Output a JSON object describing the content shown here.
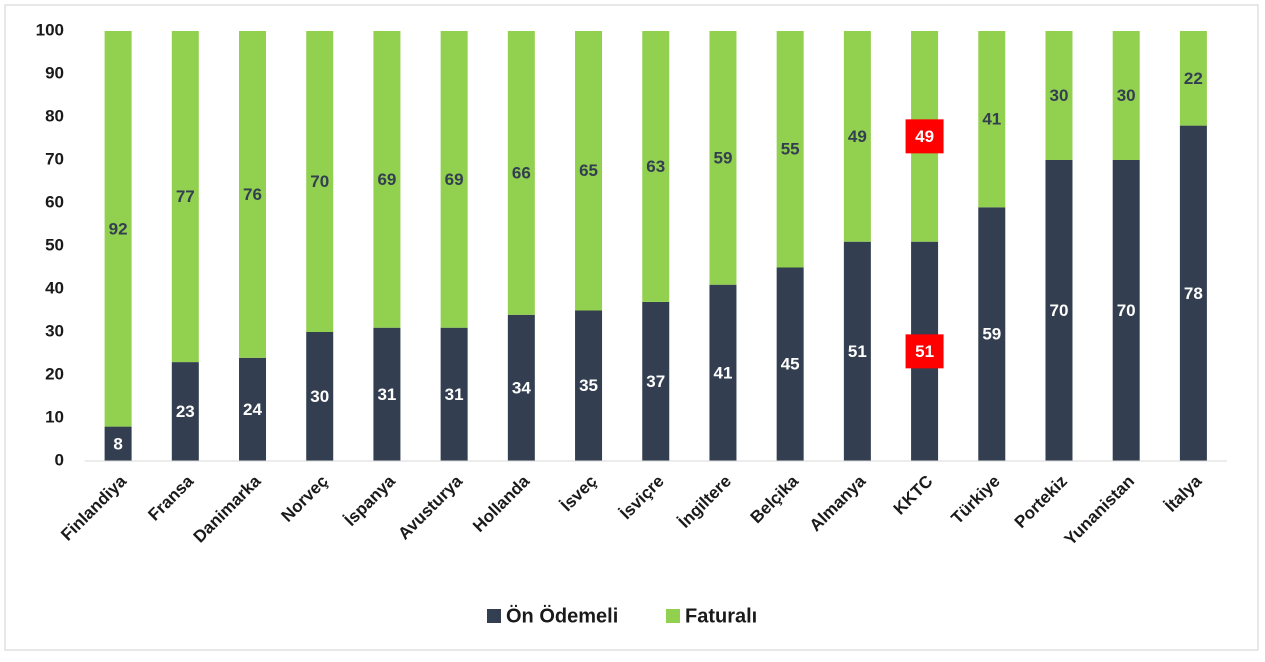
{
  "chart_data": {
    "type": "stacked_bar",
    "categories": [
      "Finlandiya",
      "Fransa",
      "Danimarka",
      "Norveç",
      "İspanya",
      "Avusturya",
      "Hollanda",
      "İsveç",
      "İsviçre",
      "İngiltere",
      "Belçika",
      "Almanya",
      "KKTC",
      "Türkiye",
      "Portekiz",
      "Yunanistan",
      "İtalya"
    ],
    "series": [
      {
        "name": "Ön Ödemeli",
        "color": "#333f50",
        "label_color": "#ffffff",
        "values": [
          8,
          23,
          24,
          30,
          31,
          31,
          34,
          35,
          37,
          41,
          45,
          51,
          51,
          59,
          70,
          70,
          78
        ]
      },
      {
        "name": "Faturalı",
        "color": "#92d050",
        "label_color": "#333f50",
        "values": [
          92,
          77,
          76,
          70,
          69,
          69,
          66,
          65,
          63,
          59,
          55,
          49,
          49,
          41,
          30,
          30,
          22
        ]
      }
    ],
    "highlight": {
      "index": 12,
      "color": "#ff0000",
      "label_color": "#ffffff"
    },
    "ylim": [
      0,
      100
    ],
    "yticks": [
      0,
      10,
      20,
      30,
      40,
      50,
      60,
      70,
      80,
      90,
      100
    ],
    "grid": false,
    "legend": "bottom"
  }
}
